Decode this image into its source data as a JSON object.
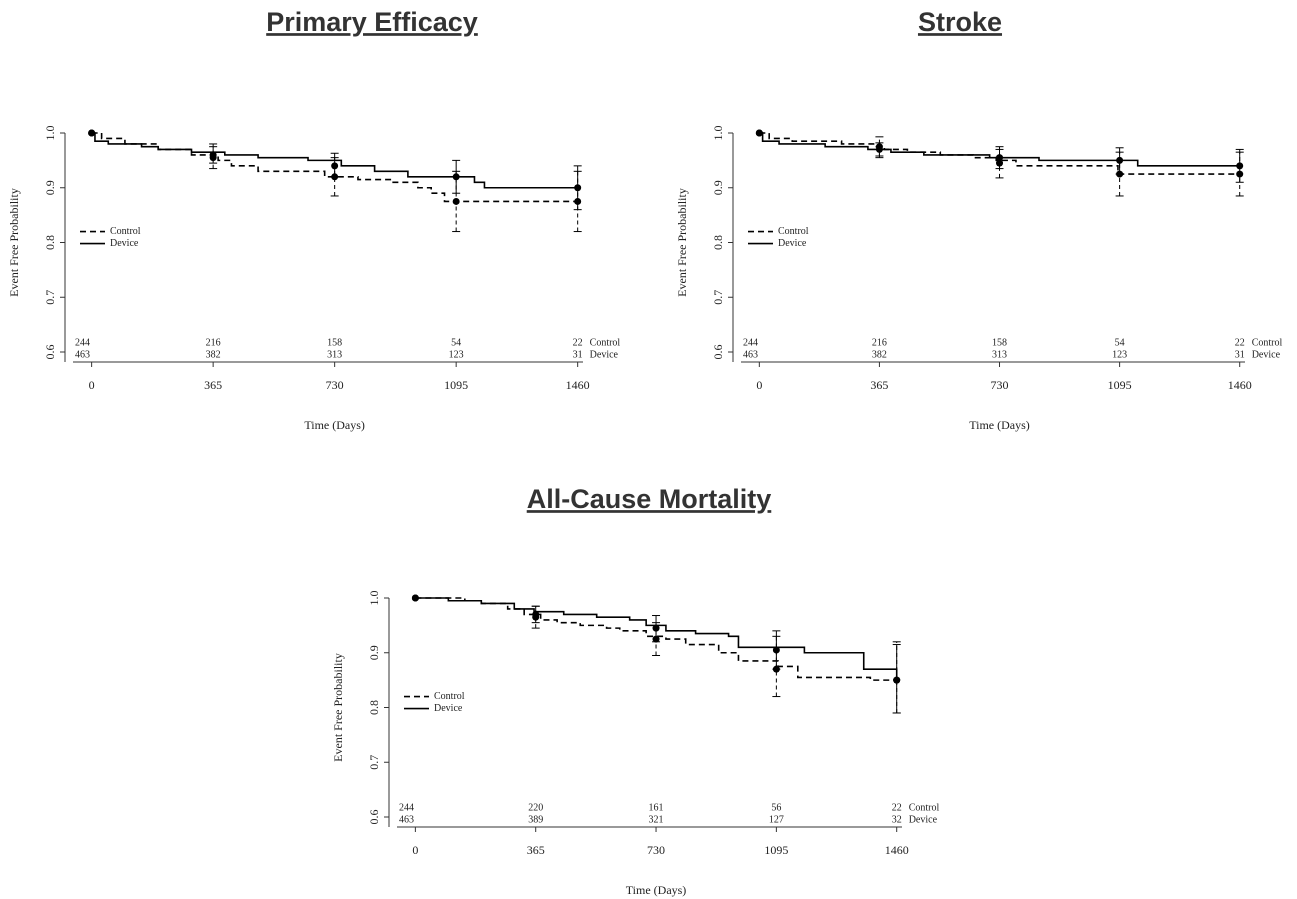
{
  "chart_data": [
    {
      "type": "step",
      "title": "Primary Efficacy",
      "x_label": "Time (Days)",
      "y_label": "Event Free Probability",
      "xlim": [
        -80,
        1470
      ],
      "ylim": [
        0.6,
        1.0
      ],
      "xticks": [
        0,
        365,
        730,
        1095,
        1460
      ],
      "yticks": [
        0.6,
        0.7,
        0.8,
        0.9,
        {
          "value": 1,
          "label": "1.0"
        }
      ],
      "legend": "left",
      "at_risk_x": [
        0,
        365,
        730,
        1095,
        1460
      ],
      "series": [
        {
          "name": "Control",
          "color": "#000000",
          "dash": "dashed",
          "x": [
            0,
            30,
            100,
            200,
            300,
            380,
            420,
            500,
            700,
            800,
            900,
            980,
            1020,
            1060,
            1460
          ],
          "values": [
            1.0,
            0.99,
            0.98,
            0.97,
            0.96,
            0.95,
            0.94,
            0.93,
            0.92,
            0.915,
            0.91,
            0.9,
            0.89,
            0.875,
            0.875
          ],
          "points": {
            "x": [
              0,
              365,
              730,
              1095,
              1460
            ],
            "values": [
              1.0,
              0.955,
              0.92,
              0.875,
              0.875
            ],
            "lower": [
              1.0,
              0.935,
              0.885,
              0.82,
              0.82
            ],
            "upper": [
              1.0,
              0.975,
              0.955,
              0.93,
              0.93
            ]
          },
          "at_risk": [
            244,
            216,
            158,
            54,
            22
          ]
        },
        {
          "name": "Device",
          "color": "#000000",
          "dash": "solid",
          "x": [
            0,
            10,
            50,
            150,
            200,
            300,
            400,
            500,
            650,
            750,
            850,
            950,
            1150,
            1180,
            1460
          ],
          "values": [
            1.0,
            0.985,
            0.98,
            0.975,
            0.97,
            0.965,
            0.96,
            0.955,
            0.95,
            0.94,
            0.93,
            0.92,
            0.91,
            0.9,
            0.9
          ],
          "points": {
            "x": [
              0,
              365,
              730,
              1095,
              1460
            ],
            "values": [
              1.0,
              0.96,
              0.94,
              0.92,
              0.9
            ],
            "lower": [
              1.0,
              0.945,
              0.92,
              0.89,
              0.86
            ],
            "upper": [
              1.0,
              0.98,
              0.963,
              0.95,
              0.94
            ]
          },
          "at_risk": [
            463,
            382,
            313,
            123,
            31
          ]
        }
      ]
    },
    {
      "type": "step",
      "title": "Stroke",
      "x_label": "Time (Days)",
      "y_label": "Event Free Probability",
      "xlim": [
        -80,
        1470
      ],
      "ylim": [
        0.6,
        1.0
      ],
      "xticks": [
        0,
        365,
        730,
        1095,
        1460
      ],
      "yticks": [
        0.6,
        0.7,
        0.8,
        0.9,
        {
          "value": 1,
          "label": "1.0"
        }
      ],
      "legend": "left",
      "at_risk_x": [
        0,
        365,
        730,
        1095,
        1460
      ],
      "series": [
        {
          "name": "Control",
          "color": "#000000",
          "dash": "dashed",
          "x": [
            0,
            30,
            100,
            250,
            350,
            380,
            450,
            550,
            650,
            720,
            780,
            1090,
            1460
          ],
          "values": [
            1.0,
            0.99,
            0.985,
            0.98,
            0.975,
            0.97,
            0.965,
            0.96,
            0.955,
            0.95,
            0.94,
            0.925,
            0.925
          ],
          "points": {
            "x": [
              0,
              365,
              730,
              1095,
              1460
            ],
            "values": [
              1.0,
              0.975,
              0.945,
              0.925,
              0.925
            ],
            "lower": [
              1.0,
              0.955,
              0.918,
              0.885,
              0.885
            ],
            "upper": [
              1.0,
              0.993,
              0.97,
              0.965,
              0.965
            ]
          },
          "at_risk": [
            244,
            216,
            158,
            54,
            22
          ]
        },
        {
          "name": "Device",
          "color": "#000000",
          "dash": "solid",
          "x": [
            0,
            10,
            60,
            200,
            330,
            400,
            500,
            700,
            850,
            1150,
            1460
          ],
          "values": [
            1.0,
            0.985,
            0.98,
            0.975,
            0.97,
            0.965,
            0.96,
            0.955,
            0.95,
            0.94,
            0.94
          ],
          "points": {
            "x": [
              0,
              365,
              730,
              1095,
              1460
            ],
            "values": [
              1.0,
              0.97,
              0.955,
              0.95,
              0.94
            ],
            "lower": [
              1.0,
              0.958,
              0.935,
              0.925,
              0.91
            ],
            "upper": [
              1.0,
              0.982,
              0.975,
              0.973,
              0.97
            ]
          },
          "at_risk": [
            463,
            382,
            313,
            123,
            31
          ]
        }
      ]
    },
    {
      "type": "step",
      "title": "All-Cause Mortality",
      "x_label": "Time (Days)",
      "y_label": "Event Free Probability",
      "xlim": [
        -80,
        1470
      ],
      "ylim": [
        0.6,
        1.0
      ],
      "xticks": [
        0,
        365,
        730,
        1095,
        1460
      ],
      "yticks": [
        0.6,
        0.7,
        0.8,
        0.9,
        {
          "value": 1,
          "label": "1.0"
        }
      ],
      "legend": "left",
      "at_risk_x": [
        0,
        365,
        730,
        1095,
        1460
      ],
      "series": [
        {
          "name": "Control",
          "color": "#000000",
          "dash": "dashed",
          "x": [
            0,
            150,
            200,
            280,
            330,
            380,
            430,
            500,
            580,
            620,
            700,
            760,
            820,
            920,
            980,
            1100,
            1160,
            1380,
            1460
          ],
          "values": [
            1.0,
            0.995,
            0.99,
            0.98,
            0.97,
            0.96,
            0.955,
            0.95,
            0.945,
            0.94,
            0.93,
            0.925,
            0.915,
            0.9,
            0.885,
            0.875,
            0.855,
            0.85,
            0.85
          ],
          "points": {
            "x": [
              0,
              365,
              730,
              1095,
              1460
            ],
            "values": [
              1.0,
              0.965,
              0.925,
              0.87,
              0.85
            ],
            "lower": [
              1.0,
              0.945,
              0.895,
              0.82,
              0.79
            ],
            "upper": [
              1.0,
              0.985,
              0.955,
              0.93,
              0.92
            ]
          },
          "at_risk": [
            244,
            220,
            161,
            56,
            22
          ]
        },
        {
          "name": "Device",
          "color": "#000000",
          "dash": "solid",
          "x": [
            0,
            100,
            200,
            300,
            360,
            450,
            550,
            650,
            700,
            760,
            850,
            950,
            980,
            1180,
            1360,
            1460
          ],
          "values": [
            1.0,
            0.995,
            0.99,
            0.98,
            0.975,
            0.97,
            0.965,
            0.96,
            0.95,
            0.94,
            0.935,
            0.93,
            0.91,
            0.9,
            0.87,
            0.85
          ],
          "points": {
            "x": [
              0,
              365,
              730,
              1095,
              1460
            ],
            "values": [
              1.0,
              0.97,
              0.945,
              0.905,
              0.85
            ],
            "lower": [
              1.0,
              0.955,
              0.92,
              0.87,
              0.79
            ],
            "upper": [
              1.0,
              0.985,
              0.968,
              0.94,
              0.915
            ]
          },
          "at_risk": [
            463,
            389,
            321,
            127,
            32
          ]
        }
      ]
    }
  ]
}
